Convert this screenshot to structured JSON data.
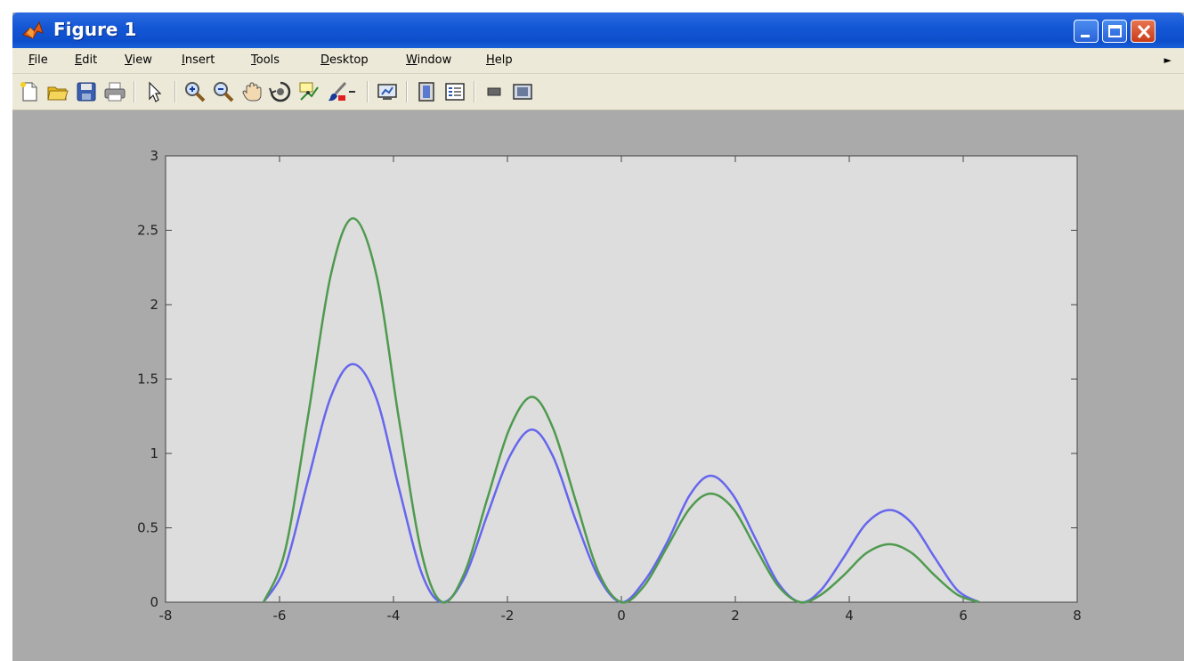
{
  "window": {
    "title": "Figure 1",
    "menu": [
      {
        "label": "File",
        "name": "menu-file"
      },
      {
        "label": "Edit",
        "name": "menu-edit"
      },
      {
        "label": "View",
        "name": "menu-view"
      },
      {
        "label": "Insert",
        "name": "menu-insert"
      },
      {
        "label": "Tools",
        "name": "menu-tools"
      },
      {
        "label": "Desktop",
        "name": "menu-desktop"
      },
      {
        "label": "Window",
        "name": "menu-window"
      },
      {
        "label": "Help",
        "name": "menu-help"
      }
    ],
    "toolbar_icons": [
      "new-figure-icon",
      "open-file-icon",
      "save-icon",
      "print-icon",
      "edit-plot-icon",
      "zoom-in-icon",
      "zoom-out-icon",
      "pan-icon",
      "rotate-3d-icon",
      "data-cursor-icon",
      "brush-icon",
      "brush-dropdown-icon",
      "link-plot-icon",
      "insert-colorbar-icon",
      "insert-legend-icon",
      "hide-plot-tools-icon",
      "show-plot-tools-icon"
    ],
    "colors": {
      "titlebar": "#1457d6",
      "menubar": "#ece9d8",
      "figure_bg": "#aaaaaa",
      "axes_bg": "#dddddd"
    }
  },
  "chart_data": {
    "type": "line",
    "title": "",
    "xlabel": "",
    "ylabel": "",
    "xlim": [
      -8,
      8
    ],
    "ylim": [
      0,
      3
    ],
    "xticks": [
      -8,
      -6,
      -4,
      -2,
      0,
      2,
      4,
      6,
      8
    ],
    "yticks": [
      0,
      0.5,
      1,
      1.5,
      2,
      2.5,
      3
    ],
    "xtick_labels": [
      "-8",
      "-6",
      "-4",
      "-2",
      "0",
      "2",
      "4",
      "6",
      "8"
    ],
    "ytick_labels": [
      "0",
      "0.5",
      "1",
      "1.5",
      "2",
      "2.5",
      "3"
    ],
    "grid": false,
    "legend": "none",
    "series": [
      {
        "color": "#6666ee",
        "x": [
          -6.28,
          -5.9,
          -5.5,
          -5.1,
          -4.71,
          -4.3,
          -3.9,
          -3.5,
          -3.14,
          -2.75,
          -2.35,
          -1.96,
          -1.57,
          -1.2,
          -0.8,
          -0.4,
          0.0,
          0.4,
          0.8,
          1.2,
          1.57,
          1.96,
          2.35,
          2.75,
          3.14,
          3.5,
          3.9,
          4.3,
          4.71,
          5.1,
          5.5,
          5.9,
          6.28
        ],
        "y": [
          0.0,
          0.24,
          0.82,
          1.38,
          1.6,
          1.37,
          0.76,
          0.19,
          0.0,
          0.17,
          0.59,
          0.98,
          1.16,
          0.98,
          0.55,
          0.17,
          0.0,
          0.14,
          0.4,
          0.72,
          0.85,
          0.72,
          0.43,
          0.13,
          0.0,
          0.08,
          0.3,
          0.53,
          0.62,
          0.53,
          0.3,
          0.08,
          0.0
        ]
      },
      {
        "color": "#4f9a4f",
        "x": [
          -6.28,
          -5.9,
          -5.5,
          -5.1,
          -4.71,
          -4.3,
          -3.9,
          -3.5,
          -3.14,
          -2.75,
          -2.35,
          -1.96,
          -1.57,
          -1.2,
          -0.8,
          -0.4,
          0.0,
          0.4,
          0.8,
          1.2,
          1.57,
          1.96,
          2.35,
          2.75,
          3.14,
          3.5,
          3.9,
          4.3,
          4.71,
          5.1,
          5.5,
          5.9,
          6.28
        ],
        "y": [
          0.0,
          0.35,
          1.25,
          2.2,
          2.58,
          2.2,
          1.22,
          0.32,
          0.0,
          0.2,
          0.7,
          1.17,
          1.38,
          1.17,
          0.68,
          0.2,
          0.0,
          0.11,
          0.37,
          0.63,
          0.73,
          0.63,
          0.37,
          0.11,
          0.0,
          0.05,
          0.18,
          0.33,
          0.39,
          0.33,
          0.18,
          0.05,
          0.0
        ]
      }
    ]
  }
}
